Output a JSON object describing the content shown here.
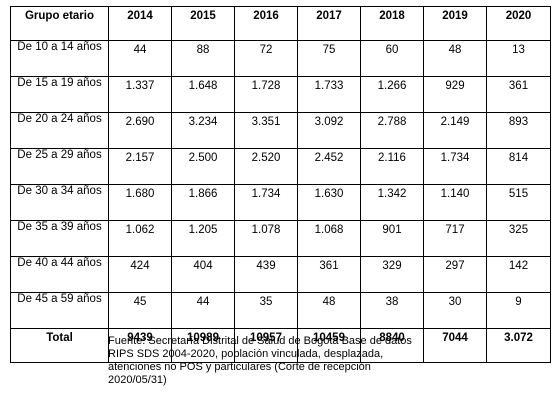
{
  "table": {
    "header": {
      "group_label": "Grupo etario",
      "years": [
        "2014",
        "2015",
        "2016",
        "2017",
        "2018",
        "2019",
        "2020"
      ]
    },
    "rows": [
      {
        "group": "De 10 a 14 años",
        "values": [
          "44",
          "88",
          "72",
          "75",
          "60",
          "48",
          "13"
        ]
      },
      {
        "group": "De 15 a 19 años",
        "values": [
          "1.337",
          "1.648",
          "1.728",
          "1.733",
          "1.266",
          "929",
          "361"
        ]
      },
      {
        "group": "De 20 a 24 años",
        "values": [
          "2.690",
          "3.234",
          "3.351",
          "3.092",
          "2.788",
          "2.149",
          "893"
        ]
      },
      {
        "group": "De 25 a 29 años",
        "values": [
          "2.157",
          "2.500",
          "2.520",
          "2.452",
          "2.116",
          "1.734",
          "814"
        ]
      },
      {
        "group": "De 30 a 34 años",
        "values": [
          "1.680",
          "1.866",
          "1.734",
          "1.630",
          "1.342",
          "1.140",
          "515"
        ]
      },
      {
        "group": "De 35 a 39 años",
        "values": [
          "1.062",
          "1.205",
          "1.078",
          "1.068",
          "901",
          "717",
          "325"
        ]
      },
      {
        "group": "De 40 a 44 años",
        "values": [
          "424",
          "404",
          "439",
          "361",
          "329",
          "297",
          "142"
        ]
      },
      {
        "group": "De 45 a 59 años",
        "values": [
          "45",
          "44",
          "35",
          "48",
          "38",
          "30",
          "9"
        ]
      }
    ],
    "total": {
      "label": "Total",
      "values": [
        "9439",
        "10989",
        "10957",
        "10459",
        "8840",
        "7044",
        "3.072"
      ]
    }
  },
  "caption": {
    "line1": "Fuente: Secretaría Distrital de Salud de Bogotá Base de datos",
    "line2": "RIPS SDS 2004-2020, población vinculada, desplazada,",
    "line3": "atenciones no POS y particulares (Corte de recepción",
    "line4": "2020/05/31)"
  }
}
